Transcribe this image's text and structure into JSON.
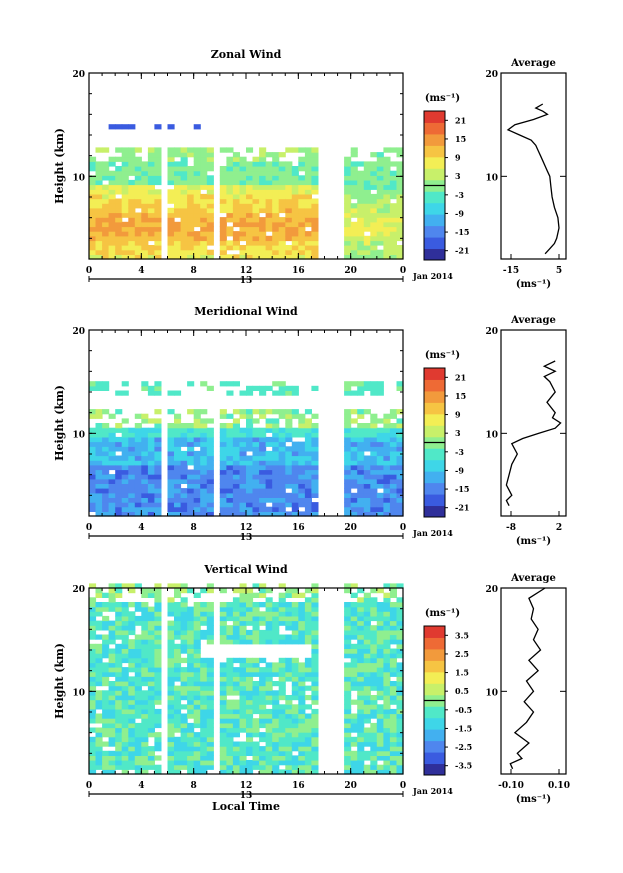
{
  "chart_data": [
    {
      "type": "heatmap",
      "title": "Zonal Wind",
      "ylabel": "Height (km)",
      "ylim": [
        2,
        20
      ],
      "yticks": [
        10,
        20
      ],
      "xlim": [
        0,
        24
      ],
      "xticks": [
        "0",
        "4",
        "8",
        "12",
        "16",
        "20",
        "0"
      ],
      "date_label": "13",
      "month_label": "Jan 2014",
      "colorbar": {
        "unit": "(ms⁻¹)",
        "range": [
          -24,
          24
        ],
        "ticks": [
          "21",
          "15",
          "9",
          "3",
          "-3",
          "-9",
          "-15",
          "-21"
        ]
      },
      "average_profile": {
        "title": "Average",
        "xlabel": "(ms⁻¹)",
        "xticks": [
          "-15",
          "5"
        ],
        "yticks": [
          "20",
          "10"
        ],
        "xlim": [
          -20,
          8
        ],
        "profile": [
          [
            -1,
            2.5
          ],
          [
            1,
            3
          ],
          [
            3,
            3.5
          ],
          [
            4,
            4
          ],
          [
            5,
            5
          ],
          [
            4.5,
            6
          ],
          [
            3,
            7
          ],
          [
            2,
            8
          ],
          [
            1.5,
            9
          ],
          [
            1,
            10
          ],
          [
            0,
            10.5
          ],
          [
            -1,
            11
          ],
          [
            -2,
            11.5
          ],
          [
            -3,
            12
          ],
          [
            -4,
            12.5
          ],
          [
            -5,
            13
          ],
          [
            -7,
            13.5
          ],
          [
            -12,
            14
          ],
          [
            -17,
            14.5
          ],
          [
            -14,
            15
          ],
          [
            -6,
            15.5
          ],
          [
            0,
            16
          ],
          [
            -2,
            16.3
          ],
          [
            -5,
            16.6
          ],
          [
            -2,
            17
          ]
        ]
      }
    },
    {
      "type": "heatmap",
      "title": "Meridional Wind",
      "ylabel": "Height (km)",
      "ylim": [
        2,
        20
      ],
      "yticks": [
        10,
        20
      ],
      "xlim": [
        0,
        24
      ],
      "xticks": [
        "0",
        "4",
        "8",
        "12",
        "16",
        "20",
        "0"
      ],
      "date_label": "13",
      "month_label": "Jan 2014",
      "colorbar": {
        "unit": "(ms⁻¹)",
        "range": [
          -24,
          24
        ],
        "ticks": [
          "21",
          "15",
          "9",
          "3",
          "-3",
          "-9",
          "-15",
          "-21"
        ]
      },
      "average_profile": {
        "title": "Average",
        "xlabel": "(ms⁻¹)",
        "xticks": [
          "-8",
          "2"
        ],
        "yticks": [
          "20",
          "10"
        ],
        "xlim": [
          -9,
          3
        ],
        "profile": [
          [
            -7.5,
            3
          ],
          [
            -8,
            3.5
          ],
          [
            -7,
            4
          ],
          [
            -8,
            5
          ],
          [
            -7.5,
            6
          ],
          [
            -7,
            7
          ],
          [
            -6,
            8
          ],
          [
            -7,
            9
          ],
          [
            -5,
            9.5
          ],
          [
            -2,
            10
          ],
          [
            1,
            10.5
          ],
          [
            2,
            11
          ],
          [
            0.5,
            11.5
          ],
          [
            1,
            12
          ],
          [
            -0.5,
            13
          ],
          [
            1,
            14
          ],
          [
            0,
            15
          ],
          [
            -1,
            15.5
          ],
          [
            1,
            16
          ],
          [
            -1,
            16.5
          ],
          [
            1,
            17
          ]
        ]
      }
    },
    {
      "type": "heatmap",
      "title": "Vertical Wind",
      "ylabel": "Height (km)",
      "xlabel": "Local Time",
      "ylim": [
        2,
        20
      ],
      "yticks": [
        10,
        20
      ],
      "xlim": [
        0,
        24
      ],
      "xticks": [
        "0",
        "4",
        "8",
        "12",
        "16",
        "20",
        "0"
      ],
      "date_label": "13",
      "month_label": "Jan 2014",
      "colorbar": {
        "unit": "(ms⁻¹)",
        "range": [
          -4,
          4
        ],
        "ticks": [
          "3.5",
          "2.5",
          "1.5",
          "0.5",
          "-0.5",
          "-1.5",
          "-2.5",
          "-3.5"
        ]
      },
      "average_profile": {
        "title": "Average",
        "xlabel": "(ms⁻¹)",
        "xticks": [
          "-0.10",
          "0.10"
        ],
        "yticks": [
          "20",
          "10"
        ],
        "xlim": [
          -0.14,
          0.14
        ],
        "profile": [
          [
            -0.09,
            2.5
          ],
          [
            -0.1,
            3
          ],
          [
            -0.05,
            3.5
          ],
          [
            -0.07,
            4
          ],
          [
            -0.02,
            5
          ],
          [
            -0.08,
            6
          ],
          [
            -0.03,
            7
          ],
          [
            0.0,
            8
          ],
          [
            -0.04,
            9
          ],
          [
            0.0,
            10
          ],
          [
            -0.03,
            11
          ],
          [
            0.02,
            12
          ],
          [
            -0.02,
            13
          ],
          [
            0.03,
            14
          ],
          [
            0.0,
            15
          ],
          [
            0.02,
            16
          ],
          [
            -0.01,
            17
          ],
          [
            0.0,
            18
          ],
          [
            -0.02,
            19
          ],
          [
            0.05,
            20
          ]
        ]
      }
    }
  ]
}
